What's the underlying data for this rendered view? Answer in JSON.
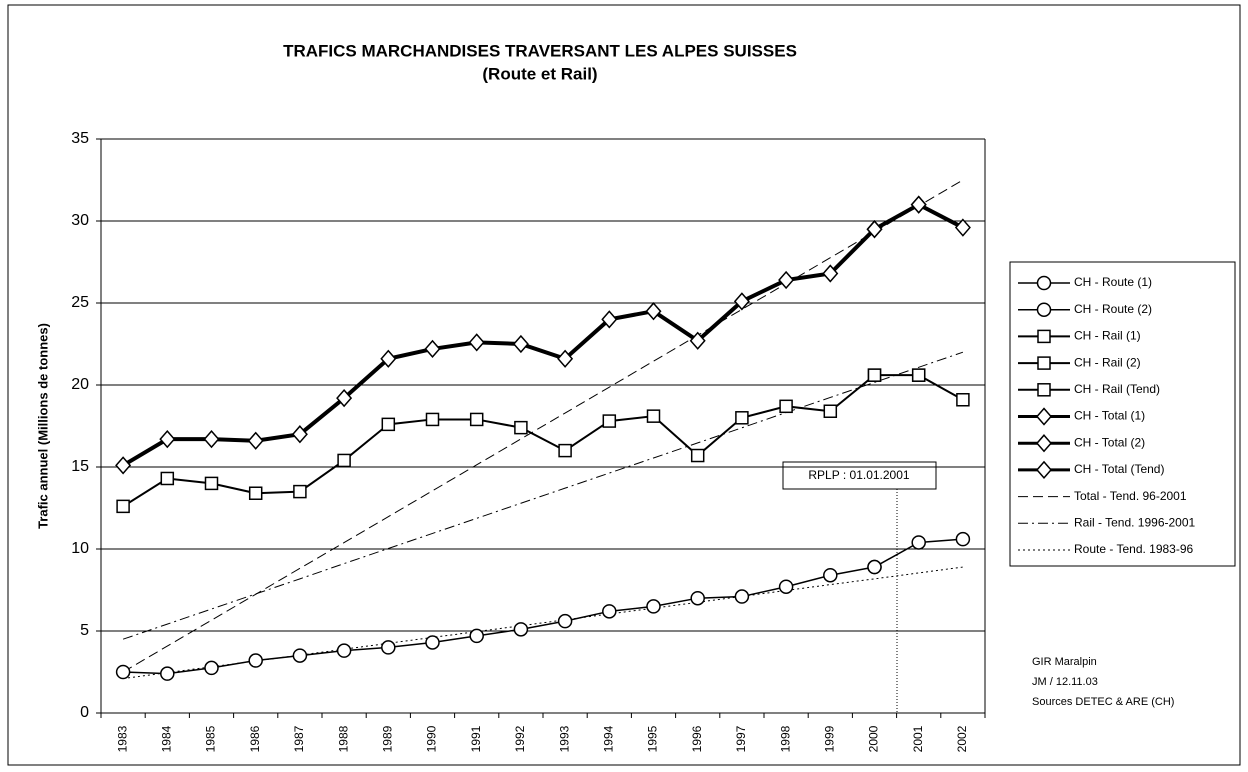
{
  "chart_data": {
    "type": "line",
    "title": "TRAFICS MARCHANDISES TRAVERSANT LES ALPES SUISSES",
    "subtitle": "(Route et Rail)",
    "y_label": "Trafic annuel (Millions de tonnes)",
    "categories": [
      "1983",
      "1984",
      "1985",
      "1986",
      "1987",
      "1988",
      "1989",
      "1990",
      "1991",
      "1992",
      "1993",
      "1994",
      "1995",
      "1996",
      "1997",
      "1998",
      "1999",
      "2000",
      "2001",
      "2002"
    ],
    "ylim": [
      0,
      35
    ],
    "yticks": [
      0,
      5,
      10,
      15,
      20,
      25,
      30,
      35
    ],
    "grid": true,
    "legend": "right",
    "series": [
      {
        "name": "CH - Route (1)",
        "color": "#000000",
        "marker": "circle",
        "width": 1.5,
        "dash": "solid",
        "values": [
          2.5,
          2.4,
          2.75,
          3.2,
          3.5,
          3.8,
          4.0,
          4.3,
          4.7,
          5.1,
          5.6,
          6.2,
          6.5,
          7.0,
          7.1,
          7.7,
          8.4,
          8.9,
          null,
          null
        ]
      },
      {
        "name": "CH - Route (2)",
        "color": "#000000",
        "marker": "circle",
        "width": 1.5,
        "dash": "solid",
        "values": [
          null,
          null,
          null,
          null,
          null,
          null,
          null,
          null,
          null,
          null,
          null,
          null,
          null,
          null,
          null,
          null,
          null,
          8.9,
          10.4,
          10.6
        ]
      },
      {
        "name": "CH - Rail (1)",
        "color": "#000000",
        "marker": "square",
        "width": 2,
        "dash": "solid",
        "values": [
          12.6,
          14.3,
          14.0,
          13.4,
          13.5,
          15.4,
          17.6,
          17.9,
          17.9,
          17.4,
          16.0,
          17.8,
          18.1,
          15.7,
          18.0,
          18.7,
          18.4,
          20.6,
          null,
          null
        ]
      },
      {
        "name": "CH - Rail (2)",
        "color": "#000000",
        "marker": "square",
        "width": 2,
        "dash": "solid",
        "values": [
          null,
          null,
          null,
          null,
          null,
          null,
          null,
          null,
          null,
          null,
          null,
          null,
          null,
          null,
          null,
          null,
          null,
          20.6,
          20.6,
          null
        ]
      },
      {
        "name": "CH - Rail (Tend)",
        "color": "#000000",
        "marker": "square",
        "width": 2,
        "dash": "solid",
        "values": [
          null,
          null,
          null,
          null,
          null,
          null,
          null,
          null,
          null,
          null,
          null,
          null,
          null,
          null,
          null,
          null,
          null,
          null,
          20.6,
          19.1
        ]
      },
      {
        "name": "CH - Total (1)",
        "color": "#000000",
        "marker": "diamond",
        "width": 4,
        "dash": "solid",
        "values": [
          15.1,
          16.7,
          16.7,
          16.6,
          17.0,
          19.2,
          21.6,
          22.2,
          22.6,
          22.5,
          21.6,
          24.0,
          24.5,
          22.7,
          25.1,
          26.4,
          26.8,
          29.5,
          null,
          null
        ]
      },
      {
        "name": "CH - Total (2)",
        "color": "#000000",
        "marker": "diamond",
        "width": 4,
        "dash": "solid",
        "values": [
          null,
          null,
          null,
          null,
          null,
          null,
          null,
          null,
          null,
          null,
          null,
          null,
          null,
          null,
          null,
          null,
          null,
          29.5,
          31.0,
          null
        ]
      },
      {
        "name": "CH - Total (Tend)",
        "color": "#000000",
        "marker": "diamond",
        "width": 4,
        "dash": "solid",
        "values": [
          null,
          null,
          null,
          null,
          null,
          null,
          null,
          null,
          null,
          null,
          null,
          null,
          null,
          null,
          null,
          null,
          null,
          null,
          31.0,
          29.6
        ]
      },
      {
        "name": "Total - Tend. 96-2001",
        "color": "#000000",
        "marker": "none",
        "width": 1,
        "dash": "dash",
        "values": [
          2.5,
          4.08,
          5.66,
          7.24,
          8.82,
          10.39,
          11.97,
          13.55,
          15.13,
          16.71,
          18.29,
          19.87,
          21.45,
          23.03,
          24.61,
          26.18,
          27.76,
          29.34,
          30.92,
          32.5
        ]
      },
      {
        "name": "Rail - Tend. 1996-2001",
        "color": "#000000",
        "marker": "none",
        "width": 1,
        "dash": "dashdot",
        "values": [
          4.5,
          5.42,
          6.34,
          7.26,
          8.18,
          9.11,
          10.03,
          10.95,
          11.87,
          12.79,
          13.71,
          14.63,
          15.55,
          16.47,
          17.39,
          18.32,
          19.24,
          20.16,
          21.08,
          22.0
        ]
      },
      {
        "name": "Route - Tend. 1983-96",
        "color": "#000000",
        "marker": "none",
        "width": 1,
        "dash": "dot",
        "values": [
          2.1,
          2.46,
          2.82,
          3.17,
          3.53,
          3.89,
          4.25,
          4.61,
          4.96,
          5.32,
          5.68,
          6.04,
          6.39,
          6.75,
          7.11,
          7.47,
          7.83,
          8.18,
          8.54,
          8.9
        ]
      }
    ],
    "annotation": "RPLP : 01.01.2001",
    "notes": [
      "GIR Maralpin",
      "JM / 12.11.03",
      "Sources DETEC & ARE (CH)"
    ]
  }
}
